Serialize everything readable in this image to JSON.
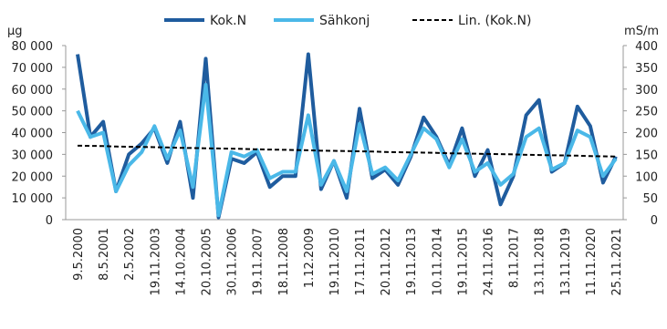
{
  "chart_data": {
    "type": "line",
    "y_label": "µg",
    "y2_label": "mS/m",
    "categories": [
      "9.5.2000",
      null,
      "8.5.2001",
      null,
      "2.5.2002",
      null,
      "19.11.2003",
      null,
      "14.10.2004",
      null,
      "20.10.2005",
      null,
      "30.11.2006",
      null,
      "19.11.2007",
      null,
      "18.11.2008",
      null,
      "1.12.2009",
      null,
      "19.11.2010",
      null,
      "17.11.2011",
      null,
      "20.11.2012",
      null,
      "19.11.2013",
      null,
      "10.11.2014",
      null,
      "19.11.2015",
      null,
      "24.11.2016",
      null,
      "8.11.2017",
      null,
      "13.11.2018",
      null,
      "13.11.2019",
      null,
      "11.11.2020",
      null,
      "25.11.2021"
    ],
    "series": [
      {
        "name": "Kok.N",
        "color": "#1f5c9e",
        "line_style": "solid",
        "axis": "y",
        "values": [
          76000,
          38000,
          45000,
          13000,
          30000,
          35000,
          42000,
          26000,
          45000,
          10000,
          74000,
          1000,
          28000,
          26000,
          31000,
          15000,
          20000,
          20000,
          76000,
          14000,
          27000,
          10000,
          51000,
          19000,
          23000,
          16000,
          29000,
          47000,
          38000,
          25000,
          42000,
          20000,
          32000,
          7000,
          20000,
          48000,
          55000,
          22000,
          26000,
          52000,
          43000,
          17000,
          29000
        ]
      },
      {
        "name": "Sähkonj",
        "color": "#4ab8e8",
        "line_style": "solid",
        "axis": "y2",
        "values": [
          250,
          190,
          200,
          65,
          125,
          155,
          215,
          140,
          205,
          75,
          310,
          10,
          155,
          145,
          160,
          95,
          110,
          110,
          240,
          80,
          135,
          65,
          220,
          105,
          120,
          90,
          150,
          210,
          185,
          120,
          185,
          110,
          130,
          80,
          105,
          190,
          210,
          115,
          130,
          205,
          190,
          100,
          140
        ]
      },
      {
        "name": "Lin. (Kok.N)",
        "color": "#000000",
        "line_style": "dashed",
        "axis": "y",
        "values": [
          34000,
          33900,
          33800,
          33600,
          33500,
          33400,
          33300,
          33200,
          33000,
          32900,
          32800,
          32700,
          32600,
          32500,
          32300,
          32200,
          32100,
          32000,
          31900,
          31700,
          31600,
          31500,
          31400,
          31300,
          31100,
          31000,
          30900,
          30800,
          30700,
          30500,
          30400,
          30300,
          30200,
          30100,
          30000,
          29800,
          29700,
          29600,
          29500,
          29400,
          29200,
          29100,
          29000
        ]
      }
    ],
    "ylim": [
      0,
      80000
    ],
    "yticks": [
      0,
      {
        "value": 10000,
        "label": "10 000"
      },
      {
        "value": 20000,
        "label": "20 000"
      },
      {
        "value": 30000,
        "label": "30 000"
      },
      {
        "value": 40000,
        "label": "40 000"
      },
      {
        "value": 50000,
        "label": "50 000"
      },
      {
        "value": 60000,
        "label": "60 000"
      },
      {
        "value": 70000,
        "label": "70 000"
      },
      {
        "value": 80000,
        "label": "80 000"
      }
    ],
    "y2lim": [
      0,
      400
    ],
    "y2ticks": [
      0,
      50,
      100,
      150,
      200,
      250,
      300,
      350,
      400
    ],
    "grid": false,
    "legend": "top"
  }
}
